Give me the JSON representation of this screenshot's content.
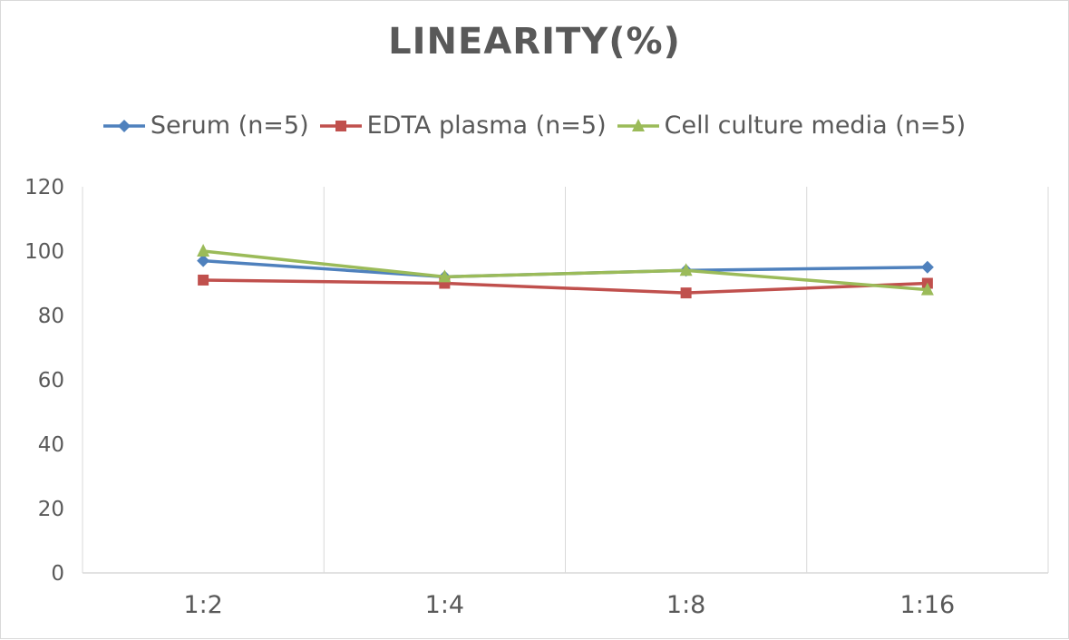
{
  "chart_data": {
    "type": "line",
    "title": "LINEARITY(%)",
    "categories": [
      "1:2",
      "1:4",
      "1:8",
      "1:16"
    ],
    "series": [
      {
        "name": "Serum (n=5)",
        "values": [
          97,
          92,
          94,
          95
        ],
        "color": "#4f81bd",
        "marker": "diamond"
      },
      {
        "name": "EDTA plasma (n=5)",
        "values": [
          91,
          90,
          87,
          90
        ],
        "color": "#c0504d",
        "marker": "square"
      },
      {
        "name": "Cell culture media (n=5)",
        "values": [
          100,
          92,
          94,
          88
        ],
        "color": "#9bbb59",
        "marker": "triangle"
      }
    ],
    "ylim": [
      0,
      120
    ],
    "yticks": [
      0,
      20,
      40,
      60,
      80,
      100,
      120
    ],
    "grid": "vertical",
    "legend": "top",
    "xlabel": "",
    "ylabel": ""
  }
}
